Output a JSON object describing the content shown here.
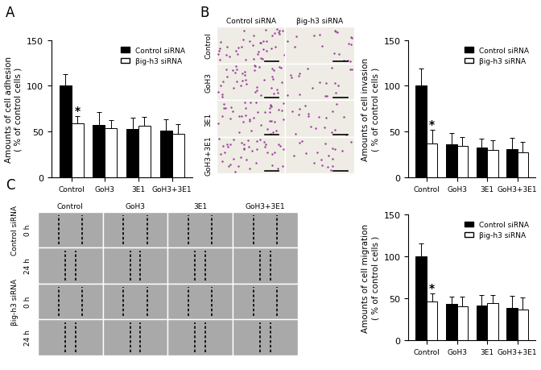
{
  "chart_data": [
    {
      "type": "bar",
      "panel": "A",
      "y_label": "Amounts of cell adhesion\n( % of control cells )",
      "categories": [
        "Control",
        "GoH3",
        "3E1",
        "GoH3+3E1"
      ],
      "series": [
        {
          "name": "Control siRNA",
          "color": "#000000",
          "values": [
            100,
            57,
            53,
            51
          ],
          "errors": [
            13,
            14,
            12,
            12
          ]
        },
        {
          "name": "βig-h3 siRNA",
          "color": "#ffffff",
          "values": [
            59,
            54,
            56,
            47
          ],
          "errors": [
            8,
            8,
            10,
            11
          ]
        }
      ],
      "annotations": [
        {
          "text": "*",
          "category": "Control",
          "series": "βig-h3 siRNA"
        }
      ],
      "ylim": [
        0,
        150
      ],
      "yticks": [
        0,
        50,
        100,
        150
      ],
      "legend": "upper right",
      "grid": false
    },
    {
      "type": "bar",
      "y_label": "Amounts of cell invasion\n( % of control cells )",
      "categories": [
        "Control",
        "GoH3",
        "3E1",
        "GoH3+3E1"
      ],
      "series": [
        {
          "name": "Control siRNA",
          "color": "#000000",
          "values": [
            100,
            36,
            32,
            31
          ],
          "errors": [
            19,
            12,
            10,
            12
          ]
        },
        {
          "name": "βig-h3 siRNA",
          "color": "#ffffff",
          "values": [
            37,
            34,
            30,
            27
          ],
          "errors": [
            15,
            10,
            10,
            12
          ]
        }
      ],
      "annotations": [
        {
          "text": "*",
          "category": "Control",
          "series": "βig-h3 siRNA"
        }
      ],
      "ylim": [
        0,
        150
      ],
      "yticks": [
        0,
        50,
        100,
        150
      ],
      "legend": "upper right",
      "grid": false
    },
    {
      "type": "bar",
      "y_label": "Amounts of cell migration\n( % of control cells )",
      "categories": [
        "Control",
        "GoH3",
        "3E1",
        "GoH3+3E1"
      ],
      "series": [
        {
          "name": "Control siRNA",
          "color": "#000000",
          "values": [
            100,
            43,
            41,
            39
          ],
          "errors": [
            15,
            9,
            13,
            14
          ]
        },
        {
          "name": "βig-h3 siRNA",
          "color": "#ffffff",
          "values": [
            46,
            40,
            44,
            37
          ],
          "errors": [
            10,
            12,
            10,
            14
          ]
        }
      ],
      "annotations": [
        {
          "text": "*",
          "category": "Control",
          "series": "βig-h3 siRNA"
        }
      ],
      "ylim": [
        0,
        150
      ],
      "yticks": [
        0,
        50,
        100,
        150
      ],
      "legend": "upper right",
      "grid": false
    }
  ],
  "image_panels": [
    {
      "panel": "B",
      "columns": [
        "Control siRNA",
        "βig-h3 siRNA"
      ],
      "rows": [
        "Control",
        "GoH3",
        "3E1",
        "GoH3+3E1"
      ]
    },
    {
      "panel": "C",
      "columns": [
        "Control",
        "GoH3",
        "3E1",
        "GoH3+3E1"
      ],
      "row_groups": [
        {
          "label": "Control siRNA",
          "rows": [
            "0 h",
            "24 h"
          ]
        },
        {
          "label": "βig-h3 siRNA",
          "rows": [
            "0 h",
            "24 h"
          ]
        }
      ]
    }
  ]
}
